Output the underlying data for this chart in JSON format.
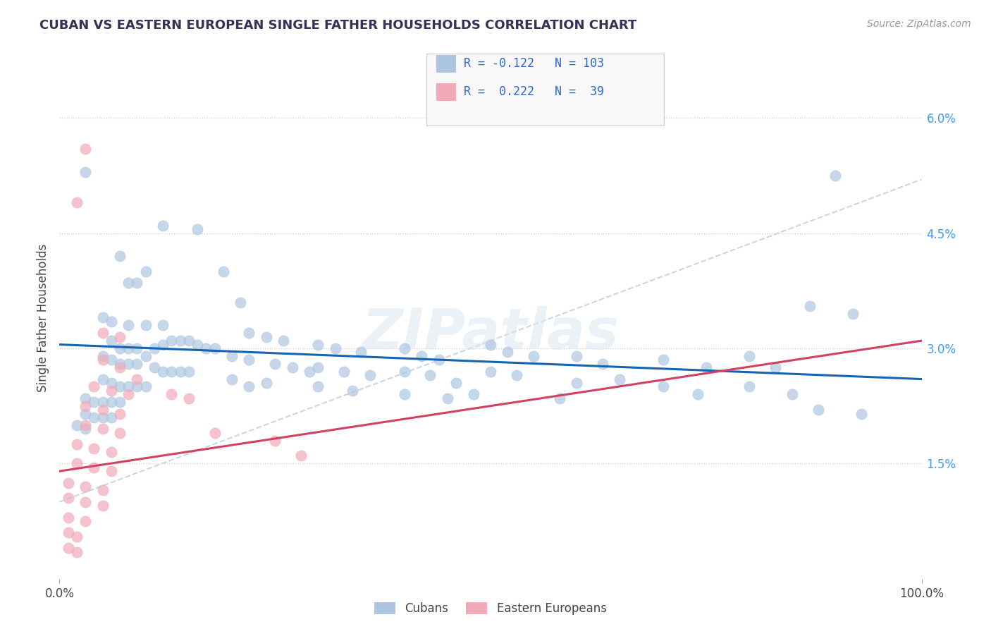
{
  "title": "CUBAN VS EASTERN EUROPEAN SINGLE FATHER HOUSEHOLDS CORRELATION CHART",
  "source": "Source: ZipAtlas.com",
  "ylabel": "Single Father Households",
  "xlim": [
    0,
    100
  ],
  "ylim": [
    0,
    6.8
  ],
  "ytick_vals": [
    1.5,
    3.0,
    4.5,
    6.0
  ],
  "ytick_labels": [
    "1.5%",
    "3.0%",
    "4.5%",
    "6.0%"
  ],
  "xtick_vals": [
    0,
    100
  ],
  "xtick_labels": [
    "0.0%",
    "100.0%"
  ],
  "blue_color": "#adc6e0",
  "pink_color": "#f2aab8",
  "blue_line_color": "#1464b4",
  "pink_line_color": "#d44060",
  "dash_line_color": "#c0cfe0",
  "watermark": "ZIPatlas",
  "blue_trendline": [
    [
      0,
      3.05
    ],
    [
      100,
      2.6
    ]
  ],
  "pink_trendline": [
    [
      0,
      1.4
    ],
    [
      100,
      3.1
    ]
  ],
  "dash_trendline": [
    [
      0,
      1.0
    ],
    [
      100,
      5.2
    ]
  ],
  "blue_scatter": [
    [
      3,
      5.3
    ],
    [
      7,
      4.2
    ],
    [
      8,
      3.85
    ],
    [
      9,
      3.85
    ],
    [
      12,
      4.6
    ],
    [
      16,
      4.55
    ],
    [
      10,
      4.0
    ],
    [
      19,
      4.0
    ],
    [
      21,
      3.6
    ],
    [
      5,
      3.4
    ],
    [
      6,
      3.35
    ],
    [
      8,
      3.3
    ],
    [
      10,
      3.3
    ],
    [
      12,
      3.3
    ],
    [
      6,
      3.1
    ],
    [
      7,
      3.0
    ],
    [
      8,
      3.0
    ],
    [
      9,
      3.0
    ],
    [
      10,
      2.9
    ],
    [
      11,
      3.0
    ],
    [
      12,
      3.05
    ],
    [
      13,
      3.1
    ],
    [
      14,
      3.1
    ],
    [
      15,
      3.1
    ],
    [
      16,
      3.05
    ],
    [
      17,
      3.0
    ],
    [
      18,
      3.0
    ],
    [
      5,
      2.9
    ],
    [
      6,
      2.85
    ],
    [
      7,
      2.8
    ],
    [
      8,
      2.8
    ],
    [
      9,
      2.8
    ],
    [
      11,
      2.75
    ],
    [
      12,
      2.7
    ],
    [
      13,
      2.7
    ],
    [
      14,
      2.7
    ],
    [
      15,
      2.7
    ],
    [
      5,
      2.6
    ],
    [
      6,
      2.55
    ],
    [
      7,
      2.5
    ],
    [
      8,
      2.5
    ],
    [
      9,
      2.5
    ],
    [
      10,
      2.5
    ],
    [
      3,
      2.35
    ],
    [
      4,
      2.3
    ],
    [
      5,
      2.3
    ],
    [
      6,
      2.3
    ],
    [
      7,
      2.3
    ],
    [
      3,
      2.15
    ],
    [
      4,
      2.1
    ],
    [
      5,
      2.1
    ],
    [
      6,
      2.1
    ],
    [
      2,
      2.0
    ],
    [
      3,
      1.95
    ],
    [
      22,
      3.2
    ],
    [
      24,
      3.15
    ],
    [
      26,
      3.1
    ],
    [
      20,
      2.9
    ],
    [
      22,
      2.85
    ],
    [
      25,
      2.8
    ],
    [
      27,
      2.75
    ],
    [
      29,
      2.7
    ],
    [
      20,
      2.6
    ],
    [
      22,
      2.5
    ],
    [
      24,
      2.55
    ],
    [
      30,
      3.05
    ],
    [
      32,
      3.0
    ],
    [
      35,
      2.95
    ],
    [
      30,
      2.75
    ],
    [
      33,
      2.7
    ],
    [
      36,
      2.65
    ],
    [
      30,
      2.5
    ],
    [
      34,
      2.45
    ],
    [
      40,
      3.0
    ],
    [
      42,
      2.9
    ],
    [
      44,
      2.85
    ],
    [
      40,
      2.7
    ],
    [
      43,
      2.65
    ],
    [
      46,
      2.55
    ],
    [
      40,
      2.4
    ],
    [
      45,
      2.35
    ],
    [
      50,
      3.05
    ],
    [
      52,
      2.95
    ],
    [
      55,
      2.9
    ],
    [
      50,
      2.7
    ],
    [
      53,
      2.65
    ],
    [
      48,
      2.4
    ],
    [
      60,
      2.9
    ],
    [
      63,
      2.8
    ],
    [
      60,
      2.55
    ],
    [
      65,
      2.6
    ],
    [
      58,
      2.35
    ],
    [
      70,
      2.85
    ],
    [
      75,
      2.75
    ],
    [
      70,
      2.5
    ],
    [
      74,
      2.4
    ],
    [
      80,
      2.9
    ],
    [
      83,
      2.75
    ],
    [
      80,
      2.5
    ],
    [
      85,
      2.4
    ],
    [
      90,
      5.25
    ],
    [
      87,
      3.55
    ],
    [
      92,
      3.45
    ],
    [
      88,
      2.2
    ],
    [
      93,
      2.15
    ]
  ],
  "pink_scatter": [
    [
      3,
      5.6
    ],
    [
      2,
      4.9
    ],
    [
      5,
      3.2
    ],
    [
      7,
      3.15
    ],
    [
      5,
      2.85
    ],
    [
      7,
      2.75
    ],
    [
      9,
      2.6
    ],
    [
      4,
      2.5
    ],
    [
      6,
      2.45
    ],
    [
      8,
      2.4
    ],
    [
      3,
      2.25
    ],
    [
      5,
      2.2
    ],
    [
      7,
      2.15
    ],
    [
      3,
      2.0
    ],
    [
      5,
      1.95
    ],
    [
      7,
      1.9
    ],
    [
      2,
      1.75
    ],
    [
      4,
      1.7
    ],
    [
      6,
      1.65
    ],
    [
      2,
      1.5
    ],
    [
      4,
      1.45
    ],
    [
      6,
      1.4
    ],
    [
      1,
      1.25
    ],
    [
      3,
      1.2
    ],
    [
      5,
      1.15
    ],
    [
      1,
      1.05
    ],
    [
      3,
      1.0
    ],
    [
      5,
      0.95
    ],
    [
      1,
      0.8
    ],
    [
      3,
      0.75
    ],
    [
      1,
      0.6
    ],
    [
      2,
      0.55
    ],
    [
      1,
      0.4
    ],
    [
      2,
      0.35
    ],
    [
      13,
      2.4
    ],
    [
      15,
      2.35
    ],
    [
      18,
      1.9
    ],
    [
      25,
      1.8
    ],
    [
      28,
      1.6
    ]
  ]
}
